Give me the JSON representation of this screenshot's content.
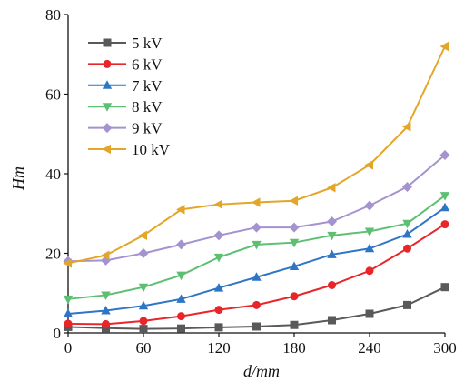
{
  "chart_data": {
    "type": "line",
    "xlabel": "d/mm",
    "ylabel": "Hm",
    "xlim": [
      0,
      300
    ],
    "ylim": [
      0,
      80
    ],
    "x_ticks": [
      0,
      60,
      120,
      180,
      240,
      300
    ],
    "y_ticks": [
      0,
      20,
      40,
      60,
      80
    ],
    "grid": false,
    "legend_position": "top-left",
    "x": [
      0,
      30,
      60,
      90,
      120,
      150,
      180,
      210,
      240,
      270,
      300
    ],
    "series": [
      {
        "name": "5 kV",
        "color": "#595959",
        "marker": "square",
        "values": [
          1.5,
          1.2,
          1.0,
          1.1,
          1.4,
          1.6,
          2.0,
          3.2,
          4.8,
          7.0,
          11.5
        ]
      },
      {
        "name": "6 kV",
        "color": "#e8262a",
        "marker": "circle",
        "values": [
          2.3,
          2.2,
          3.0,
          4.2,
          5.8,
          7.0,
          9.2,
          12.0,
          15.6,
          21.2,
          27.3
        ]
      },
      {
        "name": "7 kV",
        "color": "#2e75c5",
        "marker": "triangle-up",
        "values": [
          4.8,
          5.6,
          6.8,
          8.5,
          11.3,
          14.0,
          16.7,
          19.7,
          21.2,
          24.8,
          31.5
        ]
      },
      {
        "name": "8 kV",
        "color": "#5cbf72",
        "marker": "triangle-down",
        "values": [
          8.5,
          9.5,
          11.5,
          14.5,
          19.0,
          22.2,
          22.7,
          24.5,
          25.5,
          27.5,
          34.5
        ]
      },
      {
        "name": "9 kV",
        "color": "#a593cf",
        "marker": "diamond",
        "values": [
          18.0,
          18.2,
          20.0,
          22.2,
          24.5,
          26.5,
          26.5,
          28.0,
          32.0,
          36.7,
          44.7
        ]
      },
      {
        "name": "10 kV",
        "color": "#e3a629",
        "marker": "triangle-left",
        "values": [
          17.5,
          19.5,
          24.5,
          31.0,
          32.3,
          32.8,
          33.2,
          36.5,
          42.2,
          51.8,
          72.0
        ]
      }
    ]
  }
}
